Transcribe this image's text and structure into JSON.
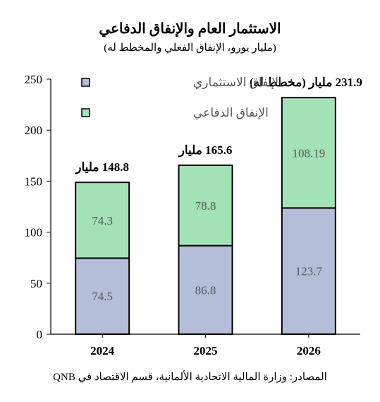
{
  "title": "الاستثمار العام والإنفاق الدفاعي",
  "subtitle": "(مليار يورو، الإنفاق الفعلي والمخطط له)",
  "source": "المصادر: وزارة المالية الاتحادية الألمانية، قسم الاقتصاد في QNB",
  "colors": {
    "investment": "#b4bed8",
    "defense": "#a3e2b7",
    "axis": "#000000",
    "value_label": "#555555"
  },
  "chart_data": {
    "type": "bar",
    "stacked": true,
    "categories": [
      "2024",
      "2025",
      "2026"
    ],
    "series": [
      {
        "name": "الإنفاق الاستثماري",
        "color": "#b4bed8",
        "values": [
          74.5,
          86.8,
          123.7
        ],
        "labels": [
          "74.5",
          "86.8",
          "123.7"
        ]
      },
      {
        "name": "الإنفاق الدفاعي",
        "color": "#a3e2b7",
        "values": [
          74.3,
          78.8,
          108.19
        ],
        "labels": [
          "74.3",
          "78.8",
          "108.19"
        ]
      }
    ],
    "totals": [
      148.8,
      165.6,
      231.9
    ],
    "total_labels": [
      "148.8 مليار",
      "165.6 مليار",
      "231.9 مليار (مخطط له)"
    ],
    "ylim": [
      0,
      250
    ],
    "yticks": [
      0,
      50,
      100,
      150,
      200,
      250
    ],
    "legend_position": "top-left",
    "grid": false
  }
}
